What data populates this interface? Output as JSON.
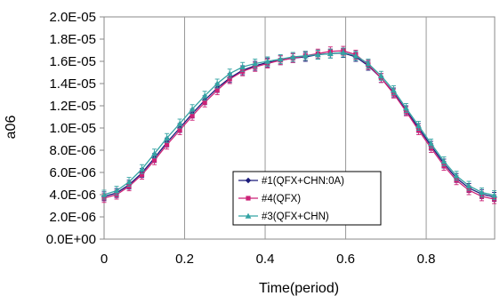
{
  "chart_data": {
    "type": "line",
    "xlabel": "Time(period)",
    "ylabel": "a06",
    "xlim": [
      0,
      0.97
    ],
    "ylim": [
      0,
      2e-05
    ],
    "x_ticks": [
      {
        "value": 0,
        "label": "0"
      },
      {
        "value": 0.2,
        "label": "0.2"
      },
      {
        "value": 0.4,
        "label": "0.4"
      },
      {
        "value": 0.6,
        "label": "0.6"
      },
      {
        "value": 0.8,
        "label": "0.8"
      }
    ],
    "y_ticks": [
      {
        "value": 0,
        "label": "0.0E+00"
      },
      {
        "value": 2e-06,
        "label": "2.0E-06"
      },
      {
        "value": 4e-06,
        "label": "4.0E-06"
      },
      {
        "value": 6e-06,
        "label": "6.0E-06"
      },
      {
        "value": 8e-06,
        "label": "8.0E-06"
      },
      {
        "value": 1e-05,
        "label": "1.0E-05"
      },
      {
        "value": 1.2e-05,
        "label": "1.2E-05"
      },
      {
        "value": 1.4e-05,
        "label": "1.4E-05"
      },
      {
        "value": 1.6e-05,
        "label": "1.6E-05"
      },
      {
        "value": 1.8e-05,
        "label": "1.8E-05"
      },
      {
        "value": 2e-05,
        "label": "2.0E-05"
      }
    ],
    "grid": "vertical",
    "legend_position": "bottom-center",
    "x": [
      0,
      0.031,
      0.062,
      0.094,
      0.125,
      0.156,
      0.188,
      0.219,
      0.25,
      0.281,
      0.312,
      0.344,
      0.375,
      0.406,
      0.438,
      0.469,
      0.5,
      0.531,
      0.562,
      0.594,
      0.625,
      0.656,
      0.688,
      0.719,
      0.75,
      0.781,
      0.812,
      0.844,
      0.875,
      0.906,
      0.938,
      0.969
    ],
    "series": [
      {
        "name": "#1(QFX+CHN:0A)",
        "color": "#1a1a7a",
        "marker": "diamond",
        "values": [
          3.85e-06,
          4.15e-06,
          4.9e-06,
          5.95e-06,
          7.3e-06,
          8.7e-06,
          1e-05,
          1.13e-05,
          1.25e-05,
          1.36e-05,
          1.45e-05,
          1.52e-05,
          1.56e-05,
          1.59e-05,
          1.61e-05,
          1.63e-05,
          1.64e-05,
          1.66e-05,
          1.67e-05,
          1.675e-05,
          1.64e-05,
          1.56e-05,
          1.45e-05,
          1.32e-05,
          1.16e-05,
          1e-05,
          8.4e-06,
          6.8e-06,
          5.5e-06,
          4.6e-06,
          4.05e-06,
          3.8e-06
        ]
      },
      {
        "name": "#4(QFX)",
        "color": "#cc2277",
        "marker": "square",
        "values": [
          3.7e-06,
          4e-06,
          4.75e-06,
          5.8e-06,
          7.1e-06,
          8.5e-06,
          9.8e-06,
          1.11e-05,
          1.23e-05,
          1.34e-05,
          1.44e-05,
          1.51e-05,
          1.55e-05,
          1.58e-05,
          1.61e-05,
          1.63e-05,
          1.65e-05,
          1.67e-05,
          1.69e-05,
          1.695e-05,
          1.66e-05,
          1.57e-05,
          1.45e-05,
          1.31e-05,
          1.15e-05,
          9.8e-06,
          8.2e-06,
          6.6e-06,
          5.3e-06,
          4.4e-06,
          3.85e-06,
          3.6e-06
        ]
      },
      {
        "name": "#3(QFX+CHN)",
        "color": "#33a3a3",
        "marker": "triangle",
        "values": [
          4e-06,
          4.35e-06,
          5.15e-06,
          6.3e-06,
          7.7e-06,
          9.1e-06,
          1.04e-05,
          1.17e-05,
          1.29e-05,
          1.4e-05,
          1.49e-05,
          1.55e-05,
          1.58e-05,
          1.6e-05,
          1.62e-05,
          1.64e-05,
          1.65e-05,
          1.66e-05,
          1.67e-05,
          1.68e-05,
          1.65e-05,
          1.58e-05,
          1.47e-05,
          1.34e-05,
          1.18e-05,
          1.02e-05,
          8.6e-06,
          7e-06,
          5.7e-06,
          4.8e-06,
          4.2e-06,
          3.95e-06
        ]
      }
    ],
    "error_bar": 4e-07
  }
}
